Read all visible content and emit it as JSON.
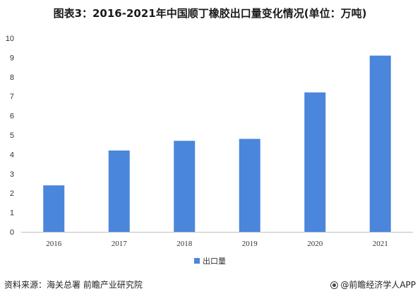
{
  "header": {
    "title": "图表3：2016-2021年中国顺丁橡胶出口量变化情况(单位：万吨)"
  },
  "footer": {
    "source": "资料来源：海关总署 前瞻产业研究院",
    "brand": "@前瞻经济学人APP"
  },
  "colors": {
    "bar": "#4a86dc",
    "grid": "#d9d9d9",
    "axis_text": "#333333"
  },
  "chart_data": {
    "type": "bar",
    "title": "图表3：2016-2021年中国顺丁橡胶出口量变化情况(单位：万吨)",
    "categories": [
      "2016",
      "2017",
      "2018",
      "2019",
      "2020",
      "2021"
    ],
    "series": [
      {
        "name": "出口量",
        "values": [
          2.4,
          4.2,
          4.7,
          4.8,
          7.2,
          9.1
        ]
      }
    ],
    "ylim": [
      0,
      10
    ],
    "yticks": [
      0,
      1,
      2,
      3,
      4,
      5,
      6,
      7,
      8,
      9,
      10
    ],
    "grid": false,
    "legend_position": "bottom"
  }
}
